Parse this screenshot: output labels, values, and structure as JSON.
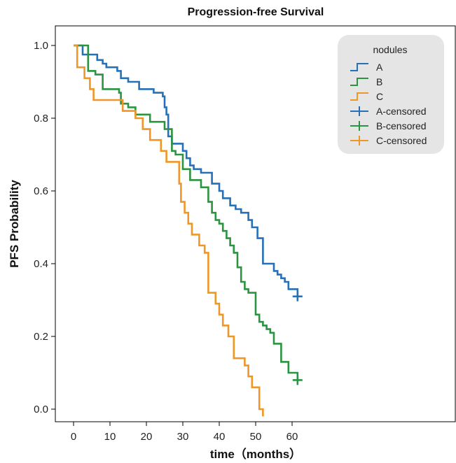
{
  "chart_data": {
    "type": "line",
    "title": "Progression-free Survival",
    "xlabel": "time（months）",
    "ylabel": "PFS Probability",
    "xlim": [
      -3,
      64
    ],
    "ylim": [
      -0.04,
      1.08
    ],
    "xticks": [
      0,
      10,
      20,
      30,
      40,
      50,
      60
    ],
    "yticks": [
      0.0,
      0.2,
      0.4,
      0.6,
      0.8,
      1.0
    ],
    "ytick_labels": [
      "0.0",
      "0.2",
      "0.4",
      "0.6",
      "0.8",
      "1.0"
    ],
    "grid": false,
    "legend": {
      "title": "nodules",
      "placement": "top-right",
      "entries": [
        "A",
        "B",
        "C",
        "A-censored",
        "B-censored",
        "C-censored"
      ]
    },
    "series": [
      {
        "name": "A",
        "color": "#2670b8",
        "step": true,
        "x": [
          0,
          1,
          2.5,
          5,
          6.5,
          8,
          9,
          11,
          12,
          13,
          15,
          18,
          22,
          24.5,
          25,
          25.5,
          26,
          27,
          28,
          30,
          31,
          32,
          33,
          35,
          38,
          40,
          41,
          43,
          44.5,
          46,
          48,
          49,
          50.5,
          52,
          55,
          56,
          57,
          58,
          59,
          61.5
        ],
        "y": [
          1.0,
          1.0,
          0.975,
          0.975,
          0.96,
          0.95,
          0.94,
          0.94,
          0.93,
          0.91,
          0.9,
          0.88,
          0.87,
          0.86,
          0.83,
          0.81,
          0.75,
          0.73,
          0.73,
          0.71,
          0.69,
          0.67,
          0.66,
          0.65,
          0.62,
          0.6,
          0.58,
          0.56,
          0.55,
          0.54,
          0.52,
          0.5,
          0.47,
          0.4,
          0.38,
          0.37,
          0.36,
          0.35,
          0.33,
          0.31
        ],
        "censored": [
          [
            61.5,
            0.31
          ]
        ]
      },
      {
        "name": "B",
        "color": "#2b9440",
        "step": true,
        "x": [
          0,
          4,
          6,
          8,
          12.5,
          13,
          15,
          17,
          21,
          25,
          27,
          28,
          30,
          32,
          35,
          37,
          38,
          39,
          40,
          41,
          42,
          43,
          44,
          45,
          46,
          47,
          48,
          50,
          51,
          52,
          53,
          54,
          55,
          57,
          59,
          61.5
        ],
        "y": [
          1.0,
          0.93,
          0.92,
          0.88,
          0.87,
          0.84,
          0.83,
          0.81,
          0.79,
          0.77,
          0.71,
          0.7,
          0.66,
          0.63,
          0.61,
          0.57,
          0.54,
          0.52,
          0.51,
          0.49,
          0.47,
          0.45,
          0.43,
          0.39,
          0.35,
          0.33,
          0.32,
          0.26,
          0.24,
          0.23,
          0.22,
          0.21,
          0.18,
          0.13,
          0.1,
          0.08
        ],
        "censored": [
          [
            61.5,
            0.08
          ]
        ]
      },
      {
        "name": "C",
        "color": "#ef9628",
        "step": true,
        "x": [
          0,
          1,
          3,
          4.5,
          5.5,
          13.5,
          17,
          19,
          21,
          24,
          25.5,
          29,
          29.5,
          30.5,
          31.5,
          32.5,
          34.5,
          36,
          37,
          39,
          40,
          41,
          42.5,
          44,
          47,
          48,
          49,
          51,
          52
        ],
        "y": [
          1.0,
          0.94,
          0.91,
          0.88,
          0.85,
          0.82,
          0.8,
          0.77,
          0.74,
          0.71,
          0.68,
          0.62,
          0.57,
          0.54,
          0.51,
          0.48,
          0.45,
          0.43,
          0.32,
          0.29,
          0.26,
          0.23,
          0.2,
          0.14,
          0.12,
          0.09,
          0.06,
          0.0,
          -0.02
        ],
        "censored": []
      }
    ]
  }
}
